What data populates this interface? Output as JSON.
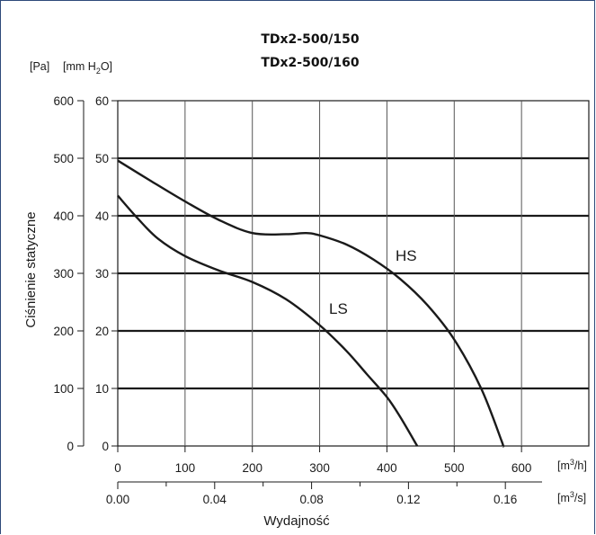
{
  "chart_data": {
    "type": "line",
    "title": [
      "TDx2-500/150",
      "TDx2-500/160"
    ],
    "y_units": {
      "pa_label": "[Pa]",
      "mm_label": "[mm H",
      "mm_sub": "2",
      "mm_close": "O]"
    },
    "ylabel": "Ciśnienie statyczne",
    "xlabel": "Wydajność",
    "y_pa": {
      "ticks": [
        "0",
        "100",
        "200",
        "300",
        "400",
        "500",
        "600"
      ],
      "lim": [
        0,
        600
      ]
    },
    "y_mm": {
      "ticks": [
        "0",
        "10",
        "20",
        "30",
        "40",
        "50",
        "60"
      ],
      "lim": [
        0,
        60
      ]
    },
    "x_m3h": {
      "ticks": [
        "0",
        "100",
        "200",
        "300",
        "400",
        "500",
        "600"
      ],
      "lim": [
        0,
        700
      ],
      "unit_label": "[m",
      "unit_sup": "3",
      "unit_close": "/h]"
    },
    "x_m3s": {
      "ticks": [
        "0.00",
        "0.04",
        "0.08",
        "0.12",
        "0.16"
      ],
      "tick_values": [
        0,
        0.04,
        0.08,
        0.12,
        0.16
      ],
      "unit_label": "[m",
      "unit_sup": "3",
      "unit_close": "/s]"
    },
    "grid": true,
    "series": [
      {
        "name": "HS",
        "x": [
          0,
          50,
          100,
          150,
          200,
          250,
          280,
          300,
          340,
          380,
          420,
          460,
          500,
          540,
          570,
          572
        ],
        "y": [
          496,
          460,
          425,
          393,
          370,
          368,
          370,
          366,
          350,
          324,
          290,
          245,
          185,
          100,
          10,
          0
        ]
      },
      {
        "name": "LS",
        "x": [
          0,
          30,
          60,
          100,
          150,
          200,
          250,
          300,
          340,
          370,
          400,
          420,
          445
        ],
        "y": [
          435,
          395,
          360,
          330,
          305,
          285,
          255,
          210,
          165,
          125,
          85,
          50,
          0
        ]
      }
    ]
  }
}
